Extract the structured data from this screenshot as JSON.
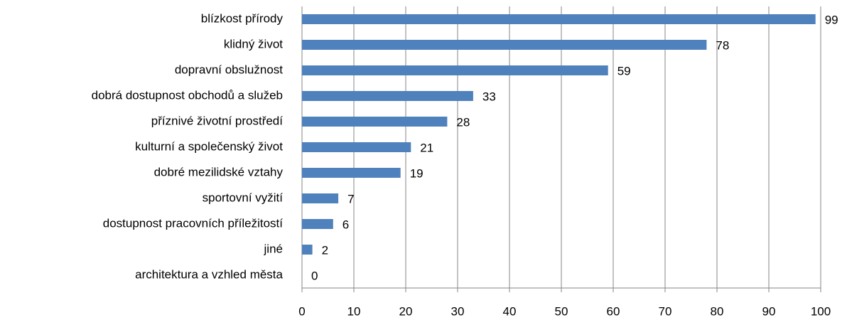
{
  "chart_data": {
    "type": "bar",
    "orientation": "horizontal",
    "categories": [
      "blízkost přírody",
      "klidný život",
      "dopravní obslužnost",
      "dobrá dostupnost obchodů a služeb",
      "příznivé životní prostředí",
      "kulturní a společenský život",
      "dobré mezilidské vztahy",
      "sportovní vyžití",
      "dostupnost pracovních příležitostí",
      "jiné",
      "architektura a vzhled města"
    ],
    "values": [
      99,
      78,
      59,
      33,
      28,
      21,
      19,
      7,
      6,
      2,
      0
    ],
    "color": "#4f81bd",
    "xlim": [
      0,
      100
    ],
    "xticks": [
      0,
      10,
      20,
      30,
      40,
      50,
      60,
      70,
      80,
      90,
      100
    ],
    "grid": true
  }
}
